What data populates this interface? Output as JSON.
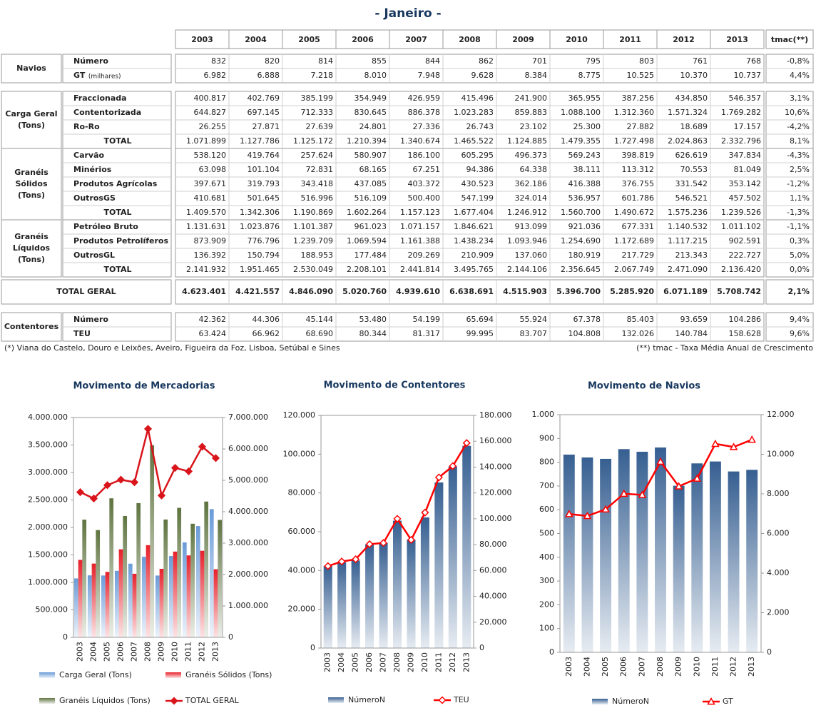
{
  "title": "- Janeiro -",
  "table": {
    "header": [
      "2003",
      "2004",
      "2005",
      "2006",
      "2007",
      "2008",
      "2009",
      "2010",
      "2011",
      "2012",
      "2013"
    ],
    "tmac_header": "tmac(**)",
    "groups": [
      {
        "label_lines": [
          "Navios"
        ],
        "rows": [
          {
            "label": "Número",
            "values": [
              "832",
              "820",
              "814",
              "855",
              "844",
              "862",
              "701",
              "795",
              "803",
              "761",
              "768"
            ],
            "tmac": "-0,8%"
          },
          {
            "label": "GT",
            "unit": "(milhares)",
            "values": [
              "6.982",
              "6.888",
              "7.218",
              "8.010",
              "7.948",
              "9.628",
              "8.384",
              "8.775",
              "10.525",
              "10.370",
              "10.737"
            ],
            "tmac": "4,4%"
          }
        ]
      },
      {
        "label_lines": [
          "Carga Geral",
          "(Tons)"
        ],
        "rows": [
          {
            "label": "Fraccionada",
            "values": [
              "400.817",
              "402.769",
              "385.199",
              "354.949",
              "426.959",
              "415.496",
              "241.900",
              "365.955",
              "387.256",
              "434.850",
              "546.357"
            ],
            "tmac": "3,1%"
          },
          {
            "label": "Contentorizada",
            "values": [
              "644.827",
              "697.145",
              "712.333",
              "830.645",
              "886.378",
              "1.023.283",
              "859.883",
              "1.088.100",
              "1.312.360",
              "1.571.324",
              "1.769.282"
            ],
            "tmac": "10,6%"
          },
          {
            "label": "Ro-Ro",
            "values": [
              "26.255",
              "27.871",
              "27.639",
              "24.801",
              "27.336",
              "26.743",
              "23.102",
              "25.300",
              "27.882",
              "18.689",
              "17.157"
            ],
            "tmac": "-4,2%"
          },
          {
            "label": "TOTAL",
            "values": [
              "1.071.899",
              "1.127.786",
              "1.125.172",
              "1.210.394",
              "1.340.674",
              "1.465.522",
              "1.124.885",
              "1.479.355",
              "1.727.498",
              "2.024.863",
              "2.332.796"
            ],
            "tmac": "8,1%"
          }
        ]
      },
      {
        "label_lines": [
          "Granéis",
          "Sólidos",
          "(Tons)"
        ],
        "rows": [
          {
            "label": "Carvão",
            "values": [
              "538.120",
              "419.764",
              "257.624",
              "580.907",
              "186.100",
              "605.295",
              "496.373",
              "569.243",
              "398.819",
              "626.619",
              "347.834"
            ],
            "tmac": "-4,3%"
          },
          {
            "label": "Minérios",
            "values": [
              "63.098",
              "101.104",
              "72.831",
              "68.165",
              "67.251",
              "94.386",
              "64.338",
              "38.111",
              "113.312",
              "70.553",
              "81.049"
            ],
            "tmac": "2,5%"
          },
          {
            "label": "Produtos Agrícolas",
            "values": [
              "397.671",
              "319.793",
              "343.418",
              "437.085",
              "403.372",
              "430.523",
              "362.186",
              "416.388",
              "376.755",
              "331.542",
              "353.142"
            ],
            "tmac": "-1,2%"
          },
          {
            "label": "OutrosGS",
            "values": [
              "410.681",
              "501.645",
              "516.996",
              "516.109",
              "500.400",
              "547.199",
              "324.014",
              "536.957",
              "601.786",
              "546.521",
              "457.502"
            ],
            "tmac": "1,1%"
          },
          {
            "label": "TOTAL",
            "values": [
              "1.409.570",
              "1.342.306",
              "1.190.869",
              "1.602.264",
              "1.157.123",
              "1.677.404",
              "1.246.912",
              "1.560.700",
              "1.490.672",
              "1.575.236",
              "1.239.526"
            ],
            "tmac": "-1,3%"
          }
        ]
      },
      {
        "label_lines": [
          "Granéis",
          "Líquidos",
          "(Tons)"
        ],
        "rows": [
          {
            "label": "Petróleo Bruto",
            "values": [
              "1.131.631",
              "1.023.876",
              "1.101.387",
              "961.023",
              "1.071.157",
              "1.846.621",
              "913.099",
              "921.036",
              "677.331",
              "1.140.532",
              "1.011.102"
            ],
            "tmac": "-1,1%"
          },
          {
            "label": "Produtos Petrolíferos",
            "values": [
              "873.909",
              "776.796",
              "1.239.709",
              "1.069.594",
              "1.161.388",
              "1.438.234",
              "1.093.946",
              "1.254.690",
              "1.172.689",
              "1.117.215",
              "902.591"
            ],
            "tmac": "0,3%"
          },
          {
            "label": "OutrosGL",
            "values": [
              "136.392",
              "150.794",
              "188.953",
              "177.484",
              "209.269",
              "210.909",
              "137.060",
              "180.919",
              "217.729",
              "213.343",
              "222.727"
            ],
            "tmac": "5,0%"
          },
          {
            "label": "TOTAL",
            "values": [
              "2.141.932",
              "1.951.465",
              "2.530.049",
              "2.208.101",
              "2.441.814",
              "3.495.765",
              "2.144.106",
              "2.356.645",
              "2.067.749",
              "2.471.090",
              "2.136.420"
            ],
            "tmac": "0,0%"
          }
        ]
      },
      {
        "label_lines": [
          "TOTAL GERAL"
        ],
        "rows": [
          {
            "values": [
              "4.623.401",
              "4.421.557",
              "4.846.090",
              "5.020.760",
              "4.939.610",
              "6.638.691",
              "4.515.903",
              "5.396.700",
              "5.285.920",
              "6.071.189",
              "5.708.742"
            ],
            "tmac": "2,1%"
          }
        ]
      },
      {
        "label_lines": [
          "Contentores"
        ],
        "rows": [
          {
            "label": "Número",
            "values": [
              "42.362",
              "44.306",
              "45.144",
              "53.480",
              "54.199",
              "65.694",
              "55.924",
              "67.378",
              "85.403",
              "93.659",
              "104.286"
            ],
            "tmac": "9,4%"
          },
          {
            "label": "TEU",
            "values": [
              "63.424",
              "66.962",
              "68.690",
              "80.344",
              "81.317",
              "99.995",
              "83.707",
              "104.808",
              "132.026",
              "140.784",
              "158.628"
            ],
            "tmac": "9,6%"
          }
        ]
      }
    ]
  },
  "footnotes": [
    "(*) Viana do Castelo, Douro e Leixões, Aveiro, Figueira da Foz, Lisboa, Setúbal e Sines",
    "(**) tmac - Taxa Média Anual de Crescimento"
  ],
  "chart_data": [
    {
      "type": "bar",
      "title": "Movimento  de Mercadorias",
      "categories": [
        "2003",
        "2004",
        "2005",
        "2006",
        "2007",
        "2008",
        "2009",
        "2010",
        "2011",
        "2012",
        "2013"
      ],
      "series": [
        {
          "name": "Carga Geral (Tons)",
          "color": "#6a9bd8",
          "values": [
            1071899,
            1127786,
            1125172,
            1210394,
            1340674,
            1465522,
            1124885,
            1479355,
            1727498,
            2024863,
            2332796
          ]
        },
        {
          "name": "Granéis Sólidos (Tons)",
          "color": "#e8202a",
          "values": [
            1409570,
            1342306,
            1190869,
            1602264,
            1157123,
            1677404,
            1246912,
            1560700,
            1490672,
            1575236,
            1239526
          ]
        },
        {
          "name": "Granéis Líquidos (Tons)",
          "color": "#5f7440",
          "values": [
            2141932,
            1951465,
            2530049,
            2208101,
            2441814,
            3495765,
            2144106,
            2356645,
            2067749,
            2471090,
            2136420
          ]
        },
        {
          "name": "TOTAL GERAL",
          "color": "#d9141b",
          "type": "line",
          "axis": "y2",
          "marker": "diamond",
          "marker_fill": "#d9141b",
          "values": [
            4623401,
            4421557,
            4846090,
            5020760,
            4939610,
            6638691,
            4515903,
            5396700,
            5285920,
            6071189,
            5708742
          ]
        }
      ],
      "ylim": [
        0,
        4000000
      ],
      "yticks": [
        0,
        {
          "value": 500000,
          "label": "500.000"
        },
        {
          "value": 1000000,
          "label": "1.000.000"
        },
        {
          "value": 1500000,
          "label": "1.500.000"
        },
        {
          "value": 2000000,
          "label": "2.000.000"
        },
        {
          "value": 2500000,
          "label": "2.500.000"
        },
        {
          "value": 3000000,
          "label": "3.000.000"
        },
        {
          "value": 3500000,
          "label": "3.500.000"
        },
        {
          "value": 4000000,
          "label": "4.000.000"
        }
      ],
      "y2lim": [
        0,
        7000000
      ],
      "y2ticks": [
        0,
        {
          "value": 1000000,
          "label": "1.000.000"
        },
        {
          "value": 2000000,
          "label": "2.000.000"
        },
        {
          "value": 3000000,
          "label": "3.000.000"
        },
        {
          "value": 4000000,
          "label": "4.000.000"
        },
        {
          "value": 5000000,
          "label": "5.000.000"
        },
        {
          "value": 6000000,
          "label": "6.000.000"
        },
        {
          "value": 7000000,
          "label": "7.000.000"
        }
      ],
      "grid": false,
      "legend": "bottom"
    },
    {
      "type": "bar",
      "title": "Movimento de Contentores",
      "categories": [
        "2003",
        "2004",
        "2005",
        "2006",
        "2007",
        "2008",
        "2009",
        "2010",
        "2011",
        "2012",
        "2013"
      ],
      "series": [
        {
          "name": "NúmeroN",
          "color": "#365f91",
          "values": [
            42362,
            44306,
            45144,
            53480,
            54199,
            65694,
            55924,
            67378,
            85403,
            93659,
            104286
          ]
        },
        {
          "name": "TEU",
          "color": "#ff0000",
          "type": "line",
          "axis": "y2",
          "marker": "diamond",
          "marker_fill": "#ffffff",
          "values": [
            63424,
            66962,
            68690,
            80344,
            81317,
            99995,
            83707,
            104808,
            132026,
            140784,
            158628
          ]
        }
      ],
      "ylim": [
        0,
        120000
      ],
      "yticks": [
        0,
        {
          "value": 20000,
          "label": "20.000"
        },
        {
          "value": 40000,
          "label": "40.000"
        },
        {
          "value": 60000,
          "label": "60.000"
        },
        {
          "value": 80000,
          "label": "80.000"
        },
        {
          "value": 100000,
          "label": "100.000"
        },
        {
          "value": 120000,
          "label": "120.000"
        }
      ],
      "y2lim": [
        0,
        180000
      ],
      "y2ticks": [
        0,
        {
          "value": 20000,
          "label": "20.000"
        },
        {
          "value": 40000,
          "label": "40.000"
        },
        {
          "value": 60000,
          "label": "60.000"
        },
        {
          "value": 80000,
          "label": "80.000"
        },
        {
          "value": 100000,
          "label": "100.000"
        },
        {
          "value": 120000,
          "label": "120.000"
        },
        {
          "value": 140000,
          "label": "140.000"
        },
        {
          "value": 160000,
          "label": "160.000"
        },
        {
          "value": 180000,
          "label": "180.000"
        }
      ],
      "grid": false,
      "legend": "bottom"
    },
    {
      "type": "bar",
      "title": "Movimento de Navios",
      "categories": [
        "2003",
        "2004",
        "2005",
        "2006",
        "2007",
        "2008",
        "2009",
        "2010",
        "2011",
        "2012",
        "2013"
      ],
      "series": [
        {
          "name": "NúmeroN",
          "color": "#365f91",
          "values": [
            832,
            820,
            814,
            855,
            844,
            862,
            701,
            795,
            803,
            761,
            768
          ]
        },
        {
          "name": "GT",
          "color": "#ff0000",
          "type": "line",
          "axis": "y2",
          "marker": "triangle",
          "marker_fill": "#ffffff",
          "values": [
            6982,
            6888,
            7218,
            8010,
            7948,
            9628,
            8384,
            8775,
            10525,
            10370,
            10737
          ]
        }
      ],
      "ylim": [
        0,
        1000
      ],
      "yticks": [
        0,
        100,
        200,
        300,
        400,
        500,
        600,
        700,
        800,
        900,
        {
          "value": 1000,
          "label": "1.000"
        }
      ],
      "y2lim": [
        0,
        12000
      ],
      "y2ticks": [
        0,
        {
          "value": 2000,
          "label": "2.000"
        },
        {
          "value": 4000,
          "label": "4.000"
        },
        {
          "value": 6000,
          "label": "6.000"
        },
        {
          "value": 8000,
          "label": "8.000"
        },
        {
          "value": 10000,
          "label": "10.000"
        },
        {
          "value": 12000,
          "label": "12.000"
        }
      ],
      "grid": false,
      "legend": "bottom"
    }
  ]
}
